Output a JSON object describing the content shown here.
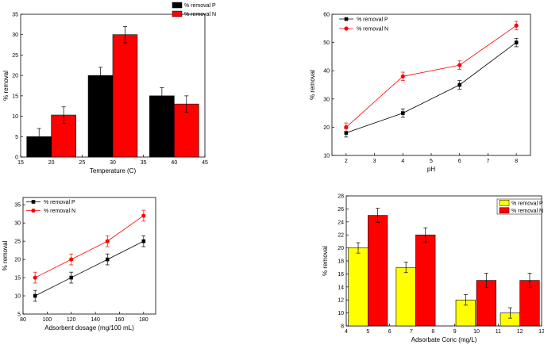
{
  "chart_data": [
    {
      "id": "temp",
      "type": "bar",
      "xlabel": "Temperature (C)",
      "ylabel": "% removal",
      "xlim": [
        15,
        45
      ],
      "ylim": [
        0,
        35
      ],
      "xticks": [
        15,
        20,
        25,
        30,
        35,
        40,
        45
      ],
      "yticks": [
        0,
        5,
        10,
        15,
        20,
        25,
        30,
        35
      ],
      "bar_width": 4,
      "legend": "top-left",
      "series": [
        {
          "name": "% removal P",
          "color": "#000000",
          "x": [
            18,
            28,
            38
          ],
          "values": [
            5,
            20,
            15
          ],
          "errors": [
            2,
            2,
            2
          ]
        },
        {
          "name": "% removal N",
          "color": "#ff0000",
          "x": [
            22,
            32,
            42
          ],
          "values": [
            10.3,
            30,
            13
          ],
          "errors": [
            2,
            2,
            2
          ]
        }
      ]
    },
    {
      "id": "ph",
      "type": "line",
      "xlabel": "pH",
      "ylabel": "% removal",
      "xlim": [
        1.5,
        8.5
      ],
      "ylim": [
        10,
        60
      ],
      "xticks": [
        2,
        3,
        4,
        5,
        6,
        7,
        8
      ],
      "yticks": [
        10,
        20,
        30,
        40,
        50,
        60
      ],
      "legend": "top-left",
      "series": [
        {
          "name": "% removal P",
          "color": "#000000",
          "marker": "square",
          "x": [
            2,
            4,
            6,
            8
          ],
          "values": [
            18,
            25,
            35,
            50
          ],
          "errors": [
            1.5,
            1.5,
            1.5,
            1.5
          ]
        },
        {
          "name": "% removal N",
          "color": "#ff0000",
          "marker": "circle",
          "x": [
            2,
            4,
            6,
            8
          ],
          "values": [
            20,
            38,
            42,
            56
          ],
          "errors": [
            1.5,
            1.5,
            1.5,
            1.5
          ]
        }
      ]
    },
    {
      "id": "dosage",
      "type": "line",
      "xlabel": "Adsorbent dosage (mg/100 mL)",
      "ylabel": "% removal",
      "xlim": [
        80,
        190
      ],
      "ylim": [
        5,
        37
      ],
      "xticks": [
        80,
        100,
        120,
        140,
        160,
        180
      ],
      "yticks": [
        5,
        10,
        15,
        20,
        25,
        30,
        35
      ],
      "legend": "top-left",
      "series": [
        {
          "name": "% removal P",
          "color": "#000000",
          "marker": "square",
          "x": [
            90,
            120,
            150,
            180
          ],
          "values": [
            10,
            15,
            20,
            25
          ],
          "errors": [
            1.5,
            1.5,
            1.5,
            1.5
          ]
        },
        {
          "name": "% removal N",
          "color": "#ff0000",
          "marker": "circle",
          "x": [
            90,
            120,
            150,
            180
          ],
          "values": [
            15,
            20,
            25,
            32
          ],
          "errors": [
            1.5,
            1.5,
            1.5,
            1.5
          ]
        }
      ]
    },
    {
      "id": "conc",
      "type": "bar",
      "xlabel": "Adsorbate Conc (mg/L)",
      "ylabel": "% removal",
      "xlim": [
        4,
        13
      ],
      "ylim": [
        8,
        28
      ],
      "xticks": [
        4,
        5,
        6,
        7,
        8,
        9,
        10,
        11,
        12,
        13
      ],
      "yticks": [
        8,
        10,
        12,
        14,
        16,
        18,
        20,
        22,
        24,
        26,
        28
      ],
      "bar_width": 0.9,
      "legend": "top-right",
      "series": [
        {
          "name": "% removal P",
          "color": "#ffff00",
          "x": [
            4.55,
            6.75,
            9.5,
            11.55
          ],
          "values": [
            20,
            17,
            12,
            10
          ],
          "errors": [
            0.8,
            0.8,
            0.8,
            0.8
          ]
        },
        {
          "name": "% removal N",
          "color": "#ff0000",
          "x": [
            5.45,
            7.65,
            10.45,
            12.45
          ],
          "values": [
            25,
            22,
            15,
            15
          ],
          "errors": [
            1.1,
            1.1,
            1.1,
            1.1
          ]
        }
      ]
    }
  ]
}
